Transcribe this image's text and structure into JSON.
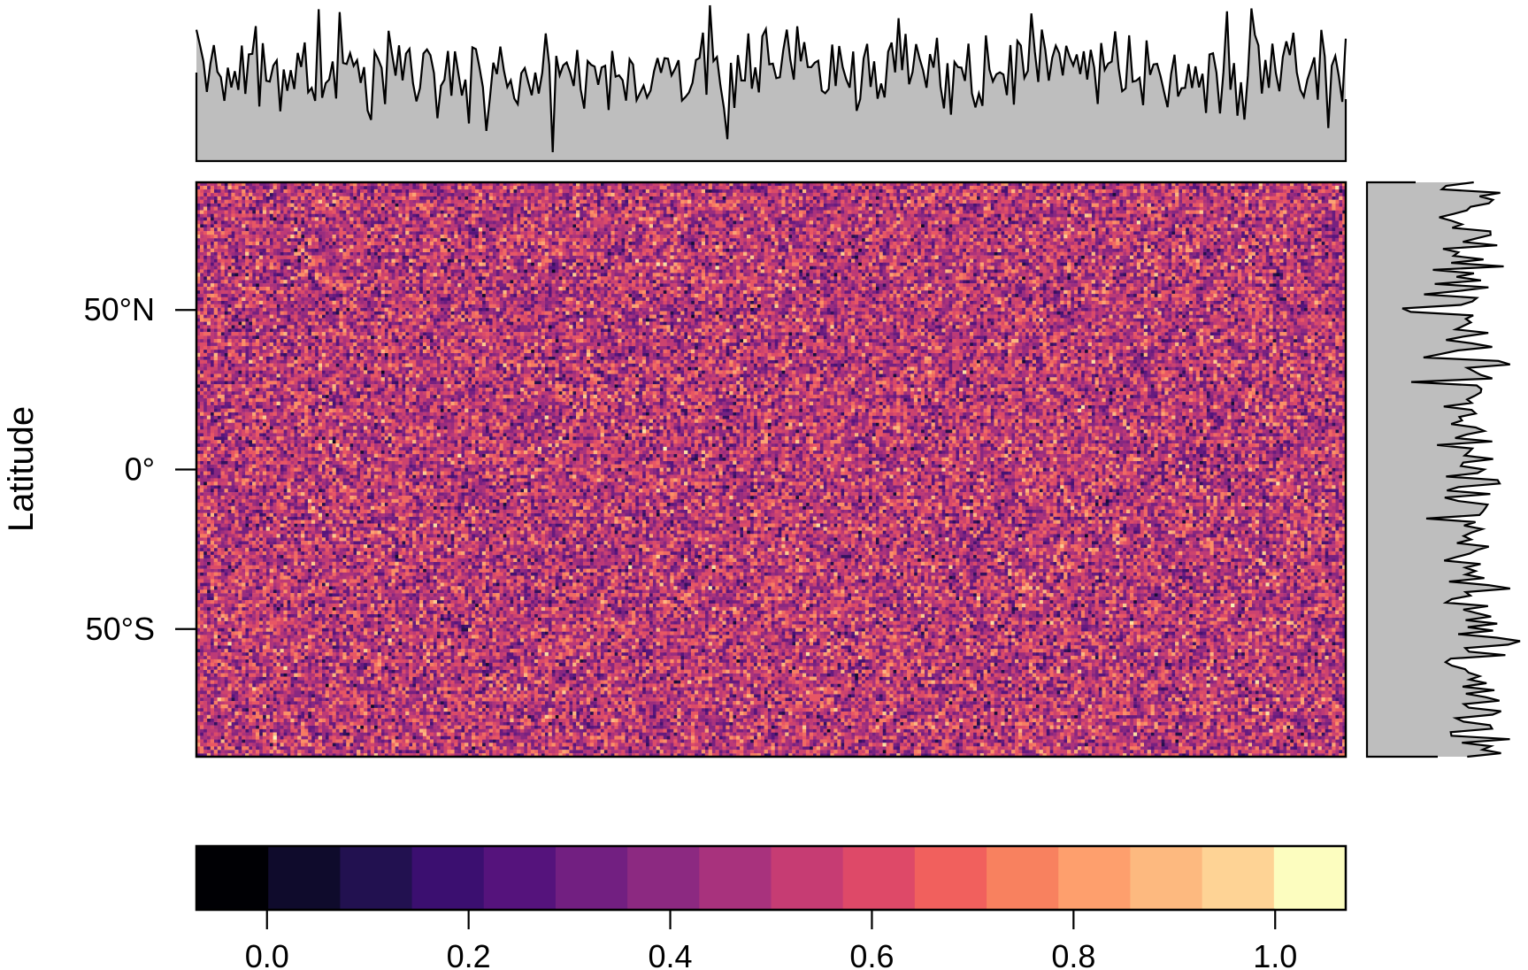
{
  "chart_data": {
    "type": "heatmap",
    "title": "",
    "xlabel": "",
    "ylabel": "Latitude",
    "ylim": [
      -90,
      90
    ],
    "xlim": [
      -180,
      180
    ],
    "grid": false,
    "y_ticks": [
      {
        "value": 50,
        "label": "50°N"
      },
      {
        "value": 0,
        "label": "0°"
      },
      {
        "value": -50,
        "label": "50°S"
      }
    ],
    "heatmap": {
      "cols": 360,
      "rows": 180,
      "value_range": [
        0,
        1
      ],
      "description_of_values": "uniform random noise"
    },
    "marginal_top": {
      "type": "area",
      "fill": "#bebebe",
      "line": "#000000"
    },
    "marginal_right": {
      "type": "area",
      "fill": "#bebebe",
      "line": "#000000"
    },
    "colorbar": {
      "ticks": [
        {
          "value": 0.0,
          "label": "0.0"
        },
        {
          "value": 0.2,
          "label": "0.2"
        },
        {
          "value": 0.4,
          "label": "0.4"
        },
        {
          "value": 0.6,
          "label": "0.6"
        },
        {
          "value": 0.8,
          "label": "0.8"
        },
        {
          "value": 1.0,
          "label": "1.0"
        }
      ],
      "range": [
        -0.07,
        1.07
      ],
      "colors": [
        "#000004",
        "#0f0b2c",
        "#221150",
        "#3b0f70",
        "#55137c",
        "#721f81",
        "#8c2981",
        "#a8327d",
        "#c63c73",
        "#de4968",
        "#f1605d",
        "#f8815f",
        "#fe9f6d",
        "#fdb97f",
        "#fed395",
        "#fcfdbf"
      ]
    }
  }
}
